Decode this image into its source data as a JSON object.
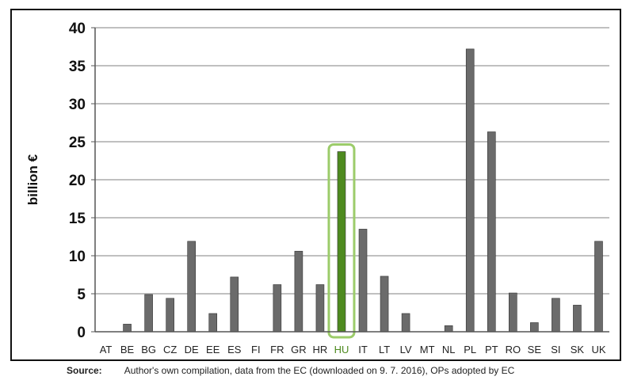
{
  "chart_data": {
    "type": "bar",
    "ylabel": "billion €",
    "ylim": [
      0,
      40
    ],
    "yticks": [
      0,
      5,
      10,
      15,
      20,
      25,
      30,
      35,
      40
    ],
    "grid": true,
    "categories": [
      "AT",
      "BE",
      "BG",
      "CZ",
      "DE",
      "EE",
      "ES",
      "FI",
      "FR",
      "GR",
      "HR",
      "HU",
      "IT",
      "LT",
      "LV",
      "MT",
      "NL",
      "PL",
      "PT",
      "RO",
      "SE",
      "SI",
      "SK",
      "UK"
    ],
    "values": [
      0,
      1.0,
      4.9,
      4.4,
      11.9,
      2.4,
      7.2,
      0,
      6.2,
      10.6,
      6.2,
      23.7,
      13.5,
      7.3,
      2.4,
      0,
      0.8,
      37.2,
      26.3,
      5.1,
      1.2,
      4.4,
      3.5,
      11.9
    ],
    "highlight": "HU",
    "bar_color": "#6b6b6b",
    "highlight_color": "#4e8a1f",
    "highlight_box_color": "#9ccc6a"
  },
  "source": {
    "label": "Source:",
    "text": "Author's own compilation, data from the EC (downloaded on 9. 7. 2016), OPs adopted by EC"
  }
}
